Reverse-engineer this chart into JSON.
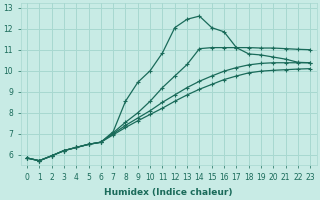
{
  "xlabel": "Humidex (Indice chaleur)",
  "bg_color": "#c8ebe5",
  "grid_color": "#a8d8d0",
  "line_color": "#1a6b5a",
  "xlim": [
    -0.5,
    23.5
  ],
  "ylim": [
    5.5,
    13.2
  ],
  "yticks": [
    6,
    7,
    8,
    9,
    10,
    11,
    12,
    13
  ],
  "xticks": [
    0,
    1,
    2,
    3,
    4,
    5,
    6,
    7,
    8,
    9,
    10,
    11,
    12,
    13,
    14,
    15,
    16,
    17,
    18,
    19,
    20,
    21,
    22,
    23
  ],
  "lines": [
    {
      "x": [
        0,
        1,
        2,
        3,
        4,
        5,
        6,
        7,
        8,
        9,
        10,
        11,
        12,
        13,
        14,
        15,
        16,
        17,
        18,
        19,
        20,
        21,
        22,
        23
      ],
      "y": [
        5.85,
        5.72,
        5.95,
        6.2,
        6.35,
        6.5,
        6.6,
        7.1,
        8.55,
        9.45,
        10.0,
        10.85,
        12.05,
        12.45,
        12.6,
        12.05,
        11.85,
        11.1,
        10.8,
        10.75,
        10.65,
        10.55,
        10.4,
        10.38
      ],
      "marker": true
    },
    {
      "x": [
        0,
        1,
        2,
        3,
        4,
        5,
        6,
        7,
        8,
        9,
        10,
        11,
        12,
        13,
        14,
        15,
        16,
        17,
        18,
        19,
        20,
        21,
        22,
        23
      ],
      "y": [
        5.85,
        5.72,
        5.95,
        6.2,
        6.35,
        6.5,
        6.6,
        7.05,
        7.55,
        8.0,
        8.55,
        9.2,
        9.75,
        10.3,
        11.05,
        11.1,
        11.1,
        11.1,
        11.1,
        11.08,
        11.08,
        11.05,
        11.02,
        11.0
      ],
      "marker": true
    },
    {
      "x": [
        0,
        1,
        2,
        3,
        4,
        5,
        6,
        7,
        8,
        9,
        10,
        11,
        12,
        13,
        14,
        15,
        16,
        17,
        18,
        19,
        20,
        21,
        22,
        23
      ],
      "y": [
        5.85,
        5.72,
        5.95,
        6.2,
        6.35,
        6.5,
        6.6,
        7.0,
        7.4,
        7.75,
        8.1,
        8.5,
        8.85,
        9.2,
        9.5,
        9.75,
        9.98,
        10.15,
        10.28,
        10.35,
        10.38,
        10.38,
        10.38,
        10.38
      ],
      "marker": true
    },
    {
      "x": [
        0,
        1,
        2,
        3,
        4,
        5,
        6,
        7,
        8,
        9,
        10,
        11,
        12,
        13,
        14,
        15,
        16,
        17,
        18,
        19,
        20,
        21,
        22,
        23
      ],
      "y": [
        5.85,
        5.72,
        5.95,
        6.2,
        6.35,
        6.5,
        6.6,
        6.95,
        7.3,
        7.62,
        7.92,
        8.22,
        8.55,
        8.85,
        9.12,
        9.35,
        9.58,
        9.75,
        9.9,
        9.98,
        10.02,
        10.05,
        10.08,
        10.1
      ],
      "marker": true
    }
  ]
}
